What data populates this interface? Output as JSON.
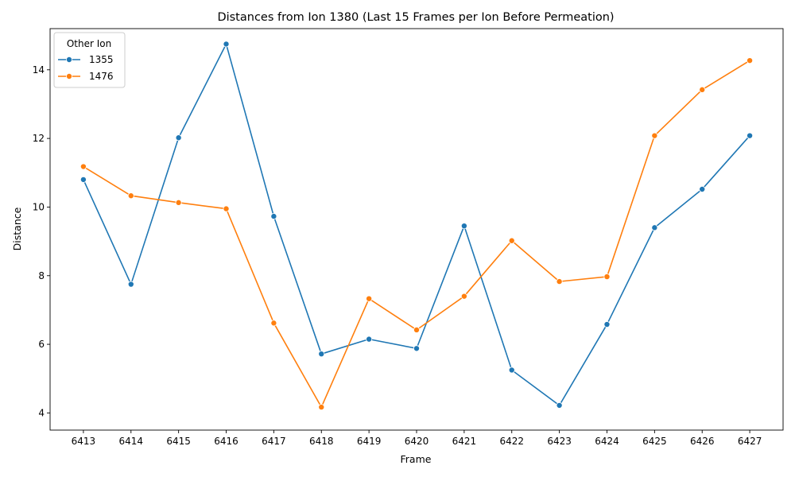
{
  "chart_data": {
    "type": "line",
    "title": "Distances from Ion 1380 (Last 15 Frames per Ion Before Permeation)",
    "xlabel": "Frame",
    "ylabel": "Distance",
    "x": [
      6413,
      6414,
      6415,
      6416,
      6417,
      6418,
      6419,
      6420,
      6421,
      6422,
      6423,
      6424,
      6425,
      6426,
      6427
    ],
    "yticks": [
      4,
      6,
      8,
      10,
      12,
      14
    ],
    "ylim": [
      3.5,
      15.2
    ],
    "grid": false,
    "legend": {
      "title": "Other Ion",
      "placement": "top-left"
    },
    "series": [
      {
        "name": "1355",
        "color": "#1f77b4",
        "values": [
          10.8,
          7.75,
          12.02,
          14.75,
          9.73,
          5.72,
          6.15,
          5.88,
          9.45,
          5.25,
          4.22,
          6.58,
          9.4,
          10.52,
          12.08
        ]
      },
      {
        "name": "1476",
        "color": "#ff7f0e",
        "values": [
          11.18,
          10.33,
          10.13,
          9.95,
          6.62,
          4.17,
          7.33,
          6.42,
          7.4,
          9.02,
          7.83,
          7.97,
          12.08,
          13.42,
          14.27
        ]
      }
    ]
  }
}
